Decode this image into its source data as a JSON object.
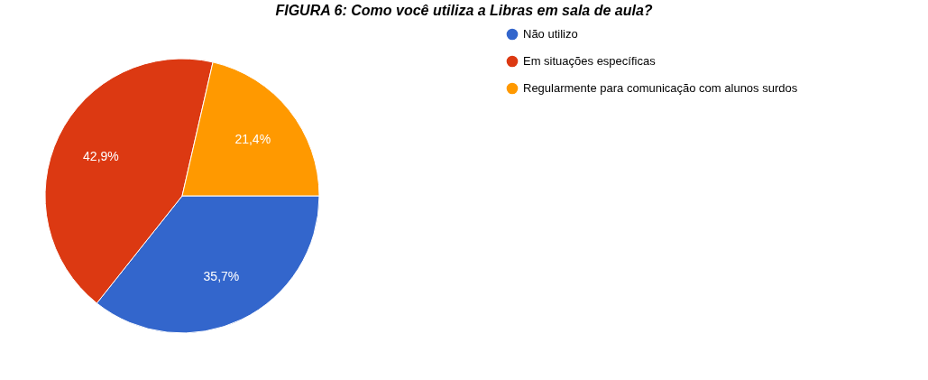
{
  "chart_data": {
    "type": "pie",
    "title": "FIGURA 6: Como você utiliza a Libras em sala de aula?",
    "categories": [
      "Não utilizo",
      "Em situações específicas",
      "Regularmente para comunicação com alunos surdos"
    ],
    "values": [
      35.7,
      42.9,
      21.4
    ],
    "colors": [
      "#3366cc",
      "#dc3912",
      "#ff9900"
    ],
    "value_labels": [
      "35,7%",
      "42,9%",
      "21,4%"
    ],
    "legend": "right"
  }
}
